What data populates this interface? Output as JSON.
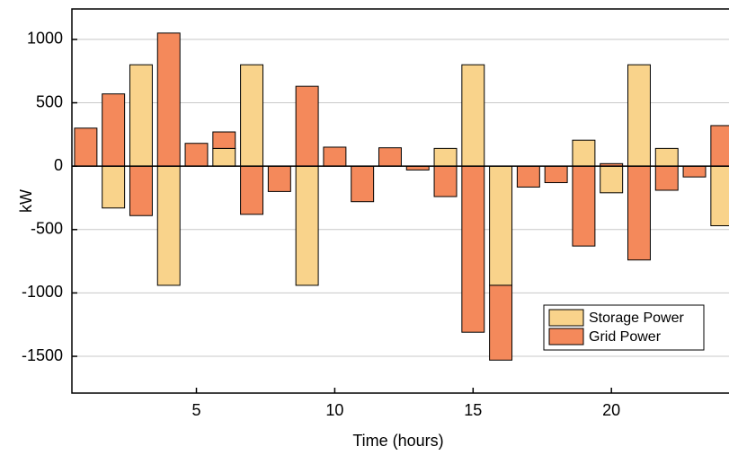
{
  "chart_data": {
    "type": "stacked_bar",
    "x_label": "Time (hours)",
    "y_label": "kW",
    "x": [
      1,
      2,
      3,
      4,
      5,
      6,
      7,
      8,
      9,
      10,
      11,
      12,
      13,
      14,
      15,
      16,
      17,
      18,
      19,
      20,
      21,
      22,
      23,
      24
    ],
    "series": [
      {
        "name": "Storage Power",
        "color": "#f9d38b",
        "values": [
          0,
          -330,
          800,
          -940,
          0,
          140,
          800,
          0,
          -940,
          0,
          0,
          0,
          0,
          140,
          800,
          -940,
          0,
          0,
          205,
          -210,
          800,
          140,
          0,
          -470
        ]
      },
      {
        "name": "Grid Power",
        "color": "#f4895b",
        "values": [
          300,
          570,
          -390,
          1050,
          180,
          130,
          -380,
          -200,
          630,
          150,
          -280,
          145,
          -30,
          -240,
          -1310,
          -590,
          -165,
          -130,
          -630,
          20,
          -740,
          -190,
          -85,
          320
        ]
      }
    ],
    "xlim": [
      0.5,
      24.25
    ],
    "ylim": [
      -1790,
      1240
    ],
    "xticks": [
      5,
      10,
      15,
      20
    ],
    "yticks": [
      -1500,
      -1000,
      -500,
      0,
      500,
      1000
    ],
    "grid": true,
    "legend": "lower right"
  }
}
